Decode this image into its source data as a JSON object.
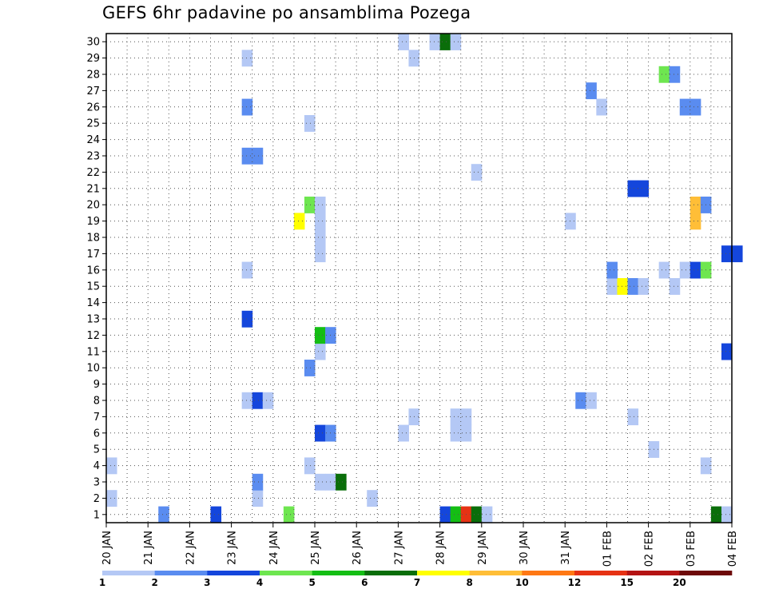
{
  "chart_data": {
    "type": "heatmap",
    "title": "GEFS 6hr padavine po ansamblima Pozega",
    "x_ticks": [
      "20 JAN",
      "21 JAN",
      "22 JAN",
      "23 JAN",
      "24 JAN",
      "25 JAN",
      "26 JAN",
      "27 JAN",
      "28 JAN",
      "29 JAN",
      "30 JAN",
      "31 JAN",
      "01 FEB",
      "02 FEB",
      "03 FEB",
      "04 FEB"
    ],
    "x_range_days": [
      0,
      15
    ],
    "y_ticks": [
      1,
      2,
      3,
      4,
      5,
      6,
      7,
      8,
      9,
      10,
      11,
      12,
      13,
      14,
      15,
      16,
      17,
      18,
      19,
      20,
      21,
      22,
      23,
      24,
      25,
      26,
      27,
      28,
      29,
      30
    ],
    "y_range": [
      0.5,
      30.5
    ],
    "grid": "dotted",
    "colorbar": {
      "position": "bottom",
      "labels": [
        "1",
        "2",
        "3",
        "4",
        "5",
        "6",
        "7",
        "8",
        "10",
        "12",
        "15",
        "20"
      ],
      "colors": [
        "#b4c8f5",
        "#5a8cf0",
        "#1446dc",
        "#6ee650",
        "#14be14",
        "#0a6e0a",
        "#ffff00",
        "#ffbe37",
        "#ff7814",
        "#e63214",
        "#b41414",
        "#6e0a0a"
      ]
    },
    "cells_by_member": [
      {
        "member": 1,
        "cells": [
          [
            1.25,
            1
          ],
          [
            2.5,
            2
          ],
          [
            4.25,
            3
          ],
          [
            8.0,
            2
          ],
          [
            8.25,
            4
          ],
          [
            8.5,
            9
          ],
          [
            8.75,
            5
          ],
          [
            9.0,
            0
          ],
          [
            14.5,
            5
          ],
          [
            14.75,
            0
          ]
        ]
      },
      {
        "member": 2,
        "cells": [
          [
            0.0,
            0
          ],
          [
            3.5,
            0
          ],
          [
            6.25,
            0
          ]
        ]
      },
      {
        "member": 3,
        "cells": [
          [
            3.5,
            1
          ],
          [
            5.0,
            0
          ],
          [
            5.25,
            0
          ],
          [
            5.5,
            5
          ]
        ]
      },
      {
        "member": 4,
        "cells": [
          [
            0.0,
            0
          ],
          [
            4.75,
            0
          ],
          [
            14.25,
            0
          ]
        ]
      },
      {
        "member": 5,
        "cells": [
          [
            13.0,
            0
          ]
        ]
      },
      {
        "member": 6,
        "cells": [
          [
            5.0,
            2
          ],
          [
            5.25,
            1
          ],
          [
            7.0,
            0
          ],
          [
            8.25,
            0
          ],
          [
            8.5,
            0
          ]
        ]
      },
      {
        "member": 7,
        "cells": [
          [
            7.25,
            0
          ],
          [
            8.25,
            0
          ],
          [
            8.5,
            0
          ],
          [
            12.5,
            0
          ]
        ]
      },
      {
        "member": 8,
        "cells": [
          [
            3.25,
            0
          ],
          [
            3.5,
            2
          ],
          [
            3.75,
            0
          ],
          [
            11.25,
            1
          ],
          [
            11.5,
            0
          ]
        ]
      },
      {
        "member": 10,
        "cells": [
          [
            4.75,
            1
          ]
        ]
      },
      {
        "member": 11,
        "cells": [
          [
            5.0,
            0
          ],
          [
            14.75,
            2
          ]
        ]
      },
      {
        "member": 12,
        "cells": [
          [
            5.0,
            4
          ],
          [
            5.25,
            1
          ]
        ]
      },
      {
        "member": 13,
        "cells": [
          [
            3.25,
            2
          ]
        ]
      },
      {
        "member": 15,
        "cells": [
          [
            12.0,
            0
          ],
          [
            12.25,
            6
          ],
          [
            12.5,
            1
          ],
          [
            12.75,
            0
          ],
          [
            13.5,
            0
          ]
        ]
      },
      {
        "member": 16,
        "cells": [
          [
            3.25,
            0
          ],
          [
            12.0,
            1
          ],
          [
            13.25,
            0
          ],
          [
            13.75,
            0
          ],
          [
            14.0,
            2
          ],
          [
            14.25,
            3
          ]
        ]
      },
      {
        "member": 17,
        "cells": [
          [
            5.0,
            0
          ],
          [
            14.75,
            2
          ],
          [
            15.0,
            2
          ]
        ]
      },
      {
        "member": 18,
        "cells": [
          [
            5.0,
            0
          ]
        ]
      },
      {
        "member": 19,
        "cells": [
          [
            4.5,
            6
          ],
          [
            5.0,
            0
          ],
          [
            11.0,
            0
          ],
          [
            14.0,
            7
          ]
        ]
      },
      {
        "member": 20,
        "cells": [
          [
            4.75,
            3
          ],
          [
            5.0,
            0
          ],
          [
            14.0,
            7
          ],
          [
            14.25,
            1
          ]
        ]
      },
      {
        "member": 21,
        "cells": [
          [
            12.5,
            2
          ],
          [
            12.75,
            2
          ]
        ]
      },
      {
        "member": 22,
        "cells": [
          [
            8.75,
            0
          ]
        ]
      },
      {
        "member": 23,
        "cells": [
          [
            3.25,
            1
          ],
          [
            3.5,
            1
          ]
        ]
      },
      {
        "member": 25,
        "cells": [
          [
            4.75,
            0
          ]
        ]
      },
      {
        "member": 26,
        "cells": [
          [
            3.25,
            1
          ],
          [
            11.75,
            0
          ],
          [
            13.75,
            1
          ],
          [
            14.0,
            1
          ]
        ]
      },
      {
        "member": 27,
        "cells": [
          [
            11.5,
            1
          ]
        ]
      },
      {
        "member": 28,
        "cells": [
          [
            13.25,
            3
          ],
          [
            13.5,
            1
          ]
        ]
      },
      {
        "member": 29,
        "cells": [
          [
            3.25,
            0
          ],
          [
            7.25,
            0
          ]
        ]
      },
      {
        "member": 30,
        "cells": [
          [
            7.0,
            0
          ],
          [
            7.75,
            0
          ],
          [
            8.0,
            5
          ],
          [
            8.25,
            0
          ]
        ]
      }
    ]
  }
}
